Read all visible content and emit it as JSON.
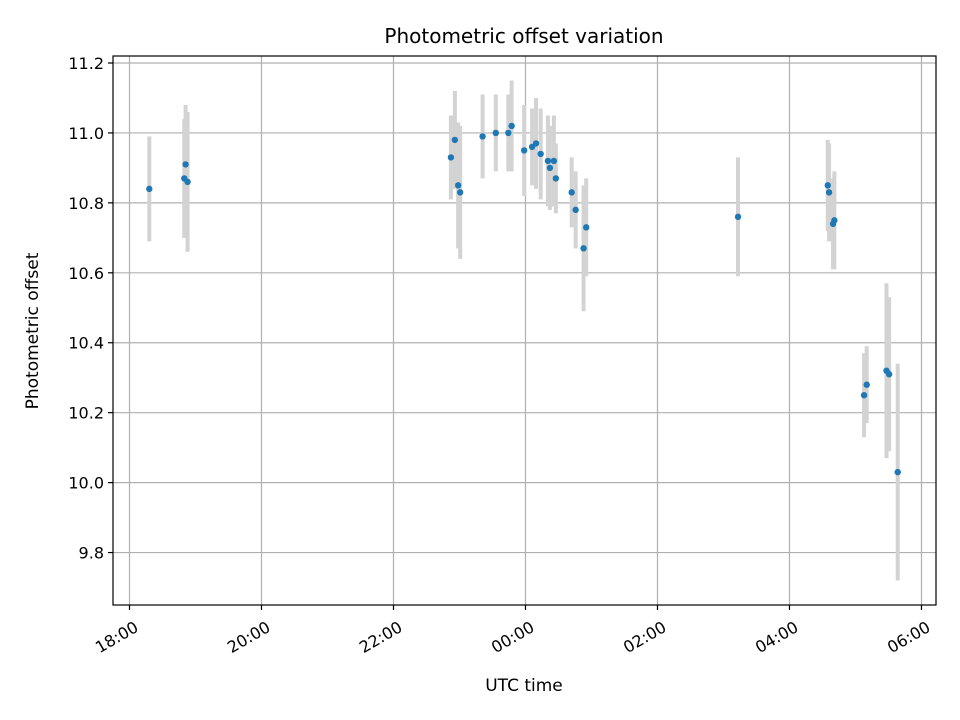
{
  "chart_data": {
    "type": "scatter",
    "title": "Photometric offset variation",
    "xlabel": "UTC time",
    "ylabel": "Photometric offset",
    "x_unit": "hours since 18:00 UTC",
    "xlim": [
      -0.25,
      12.22
    ],
    "ylim": [
      9.65,
      11.22
    ],
    "x_ticks": [
      {
        "value": 0,
        "label": "18:00"
      },
      {
        "value": 2,
        "label": "20:00"
      },
      {
        "value": 4,
        "label": "22:00"
      },
      {
        "value": 6,
        "label": "00:00"
      },
      {
        "value": 8,
        "label": "02:00"
      },
      {
        "value": 10,
        "label": "04:00"
      },
      {
        "value": 12,
        "label": "06:00"
      }
    ],
    "y_ticks": [
      {
        "value": 9.8,
        "label": "9.8"
      },
      {
        "value": 10.0,
        "label": "10.0"
      },
      {
        "value": 10.2,
        "label": "10.2"
      },
      {
        "value": 10.4,
        "label": "10.4"
      },
      {
        "value": 10.6,
        "label": "10.6"
      },
      {
        "value": 10.8,
        "label": "10.8"
      },
      {
        "value": 11.0,
        "label": "11.0"
      },
      {
        "value": 11.2,
        "label": "11.2"
      }
    ],
    "grid": true,
    "point_color": "#1f77b4",
    "errorbar_color": "#d3d3d3",
    "points": [
      {
        "x": 0.3,
        "y": 10.84,
        "err": 0.15
      },
      {
        "x": 0.83,
        "y": 10.87,
        "err": 0.17
      },
      {
        "x": 0.85,
        "y": 10.91,
        "err": 0.17
      },
      {
        "x": 0.88,
        "y": 10.86,
        "err": 0.2
      },
      {
        "x": 4.87,
        "y": 10.93,
        "err": 0.12
      },
      {
        "x": 4.93,
        "y": 10.98,
        "err": 0.14
      },
      {
        "x": 4.98,
        "y": 10.85,
        "err": 0.18
      },
      {
        "x": 5.01,
        "y": 10.83,
        "err": 0.19
      },
      {
        "x": 5.35,
        "y": 10.99,
        "err": 0.12
      },
      {
        "x": 5.55,
        "y": 11.0,
        "err": 0.11
      },
      {
        "x": 5.74,
        "y": 11.0,
        "err": 0.11
      },
      {
        "x": 5.79,
        "y": 11.02,
        "err": 0.13
      },
      {
        "x": 5.98,
        "y": 10.95,
        "err": 0.13
      },
      {
        "x": 6.1,
        "y": 10.96,
        "err": 0.11
      },
      {
        "x": 6.16,
        "y": 10.97,
        "err": 0.13
      },
      {
        "x": 6.23,
        "y": 10.94,
        "err": 0.13
      },
      {
        "x": 6.34,
        "y": 10.92,
        "err": 0.13
      },
      {
        "x": 6.37,
        "y": 10.9,
        "err": 0.12
      },
      {
        "x": 6.43,
        "y": 10.92,
        "err": 0.13
      },
      {
        "x": 6.46,
        "y": 10.87,
        "err": 0.1
      },
      {
        "x": 6.7,
        "y": 10.83,
        "err": 0.1
      },
      {
        "x": 6.76,
        "y": 10.78,
        "err": 0.11
      },
      {
        "x": 6.88,
        "y": 10.67,
        "err": 0.18
      },
      {
        "x": 6.92,
        "y": 10.73,
        "err": 0.14
      },
      {
        "x": 9.22,
        "y": 10.76,
        "err": 0.17
      },
      {
        "x": 10.58,
        "y": 10.85,
        "err": 0.13
      },
      {
        "x": 10.6,
        "y": 10.83,
        "err": 0.14
      },
      {
        "x": 10.66,
        "y": 10.74,
        "err": 0.13
      },
      {
        "x": 10.68,
        "y": 10.75,
        "err": 0.14
      },
      {
        "x": 11.13,
        "y": 10.25,
        "err": 0.12
      },
      {
        "x": 11.17,
        "y": 10.28,
        "err": 0.11
      },
      {
        "x": 11.47,
        "y": 10.32,
        "err": 0.25
      },
      {
        "x": 11.51,
        "y": 10.31,
        "err": 0.22
      },
      {
        "x": 11.64,
        "y": 10.03,
        "err": 0.31
      }
    ]
  }
}
